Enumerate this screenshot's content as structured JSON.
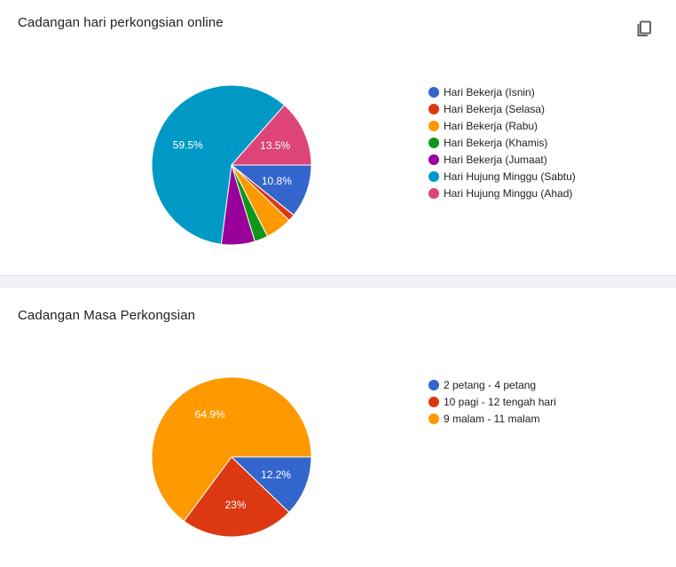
{
  "charts": [
    {
      "title": "Cadangan hari perkongsian online",
      "chart_data": {
        "type": "pie",
        "categories": [
          "Hari Bekerja (Isnin)",
          "Hari Bekerja (Selasa)",
          "Hari Bekerja (Rabu)",
          "Hari Bekerja (Khamis)",
          "Hari Bekerja (Jumaat)",
          "Hari Hujung Minggu (Sabtu)",
          "Hari Hujung Minggu (Ahad)"
        ],
        "values": [
          10.8,
          1.4,
          5.4,
          2.7,
          6.8,
          59.5,
          13.5
        ],
        "labels": [
          "10.8%",
          "",
          "",
          "",
          "",
          "59.5%",
          "13.5%"
        ],
        "colors": [
          "#3366cc",
          "#dc3912",
          "#ff9900",
          "#109618",
          "#990099",
          "#0099c6",
          "#dd4477"
        ],
        "legend_position": "right"
      }
    },
    {
      "title": "Cadangan Masa Perkongsian",
      "chart_data": {
        "type": "pie",
        "categories": [
          "2 petang - 4 petang",
          "10 pagi - 12 tengah hari",
          "9 malam - 11 malam"
        ],
        "values": [
          12.2,
          23,
          64.9
        ],
        "labels": [
          "12.2%",
          "23%",
          "64.9%"
        ],
        "colors": [
          "#3366cc",
          "#dc3912",
          "#ff9900"
        ],
        "legend_position": "right"
      }
    }
  ],
  "icons": {
    "copy": "copy-icon"
  }
}
